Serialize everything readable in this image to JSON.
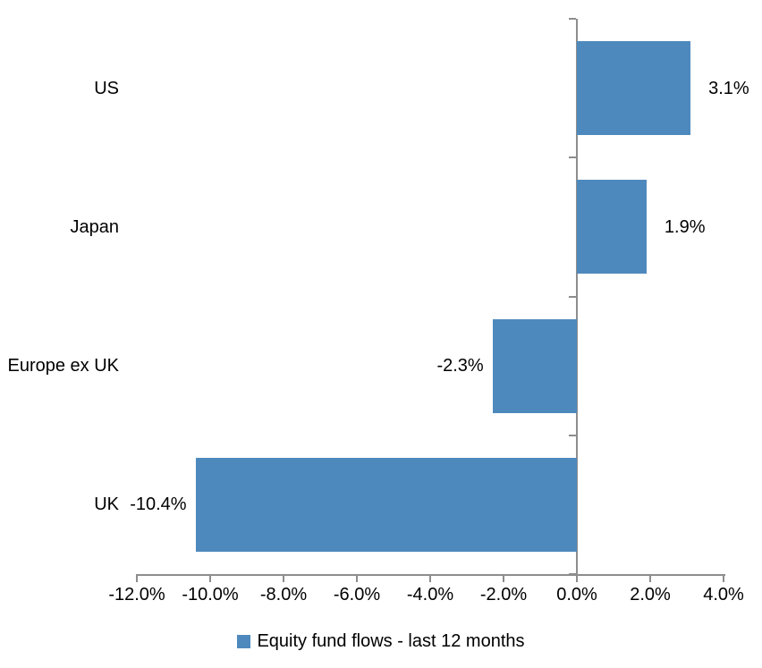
{
  "chart_data": {
    "type": "bar",
    "orientation": "horizontal",
    "title": "",
    "xlabel": "",
    "ylabel": "",
    "categories": [
      "US",
      "Japan",
      "Europe ex UK",
      "UK"
    ],
    "values": [
      3.1,
      1.9,
      -2.3,
      -10.4
    ],
    "data_labels": [
      "3.1%",
      "1.9%",
      "-2.3%",
      "-10.4%"
    ],
    "series_name": "Equity fund flows - last 12 months",
    "xlim": [
      -12,
      4
    ],
    "x_ticks": [
      -12,
      -10,
      -8,
      -6,
      -4,
      -2,
      0,
      2,
      4
    ],
    "x_tick_labels": [
      "-12.0%",
      "-10.0%",
      "-8.0%",
      "-6.0%",
      "-4.0%",
      "-2.0%",
      "0.0%",
      "2.0%",
      "4.0%"
    ],
    "grid": false,
    "legend_position": "bottom",
    "bar_color": "#4E89BE",
    "axis_color": "#8D8D8D",
    "text_color": "#000000"
  }
}
